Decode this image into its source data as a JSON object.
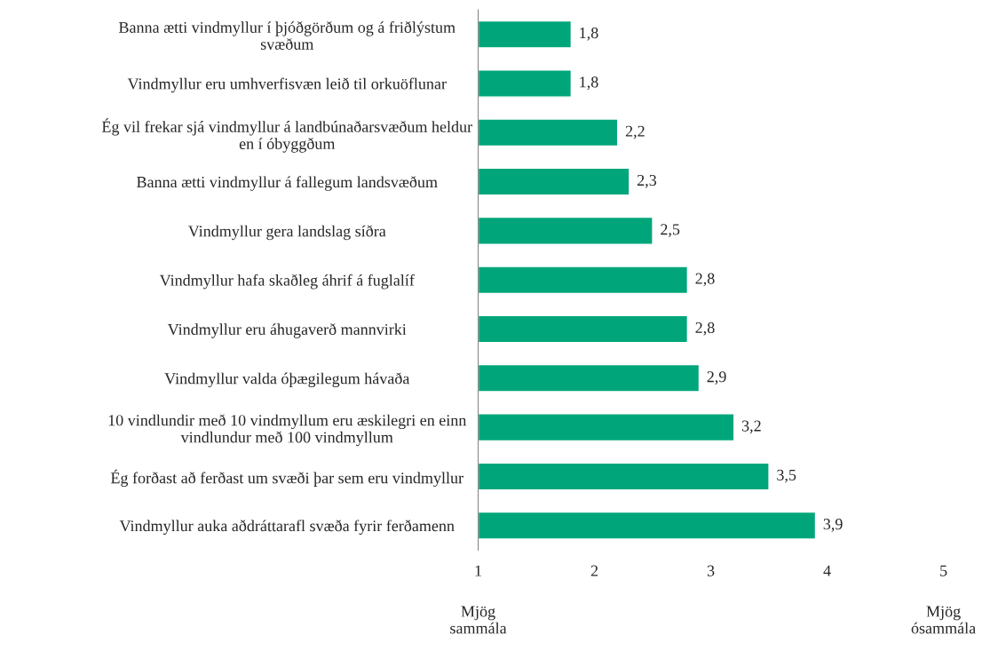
{
  "chart_data": {
    "type": "bar",
    "orientation": "horizontal",
    "categories": [
      "Banna ætti vindmyllur í þjóðgörðum og á friðlýstum\nsvæðum",
      "Vindmyllur eru umhverfisvæn leið til orkuöflunar",
      "Ég vil frekar sjá vindmyllur á landbúnaðarsvæðum heldur\nen í óbyggðum",
      "Banna ætti vindmyllur á fallegum landsvæðum",
      "Vindmyllur gera landslag síðra",
      "Vindmyllur hafa skaðleg áhrif á fuglalíf",
      "Vindmyllur eru áhugaverð mannvirki",
      "Vindmyllur valda óþægilegum hávaða",
      "10 vindlundir með 10 vindmyllum eru æskilegri en einn\nvindlundur með 100 vindmyllum",
      "Ég forðast að ferðast um svæði þar sem eru vindmyllur",
      "Vindmyllur auka aðdráttarafl svæða fyrir ferðamenn"
    ],
    "values": [
      1.8,
      1.8,
      2.2,
      2.3,
      2.5,
      2.8,
      2.8,
      2.9,
      3.2,
      3.5,
      3.9
    ],
    "value_labels": [
      "1,8",
      "1,8",
      "2,2",
      "2,3",
      "2,5",
      "2,8",
      "2,8",
      "2,9",
      "3,2",
      "3,5",
      "3,9"
    ],
    "color": "#00a67a",
    "xlim": [
      1,
      5
    ],
    "xticks": [
      1,
      2,
      3,
      4,
      5
    ],
    "annotations": [
      "Mjög\nsammála",
      "Mjög\nósammála"
    ]
  }
}
